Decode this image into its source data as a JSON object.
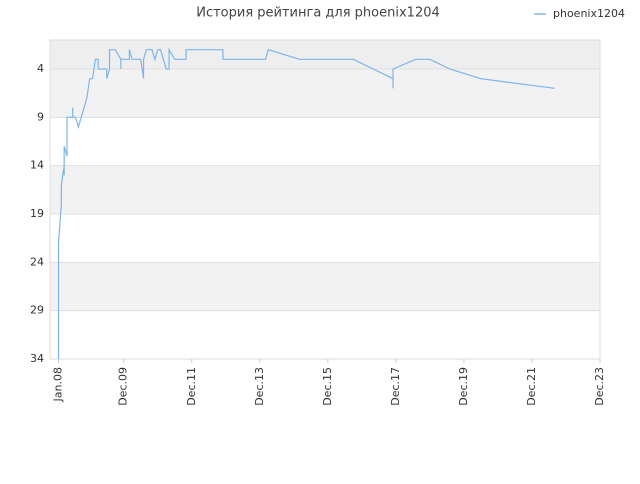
{
  "chart_data": {
    "type": "line",
    "title": "История рейтинга для phoenix1204",
    "x": [
      "2008-01",
      "2008-01",
      "2008-01",
      "2008-02",
      "2008-02",
      "2008-03",
      "2008-03",
      "2008-03",
      "2008-04",
      "2008-04",
      "2008-06",
      "2008-06",
      "2008-06",
      "2008-07",
      "2008-08",
      "2008-11",
      "2008-12",
      "2009-01",
      "2009-02",
      "2009-03",
      "2009-03",
      "2009-06",
      "2009-06",
      "2009-07",
      "2009-07",
      "2009-09",
      "2009-11",
      "2009-11",
      "2009-11",
      "2010-02",
      "2010-02",
      "2010-03",
      "2010-06",
      "2010-07",
      "2010-07",
      "2010-08",
      "2010-10",
      "2010-11",
      "2010-12",
      "2011-01",
      "2011-03",
      "2011-04",
      "2011-04",
      "2011-06",
      "2011-10",
      "2011-10",
      "2012-11",
      "2012-11",
      "2014-02",
      "2014-03",
      "2015-02",
      "2016-09",
      "2017-11",
      "2017-11",
      "2017-11",
      "2018-07",
      "2018-12",
      "2019-07",
      "2020-06",
      "2022-08"
    ],
    "series": [
      {
        "name": "phoenix1204",
        "color": "#7cb5ec",
        "values": [
          34,
          26,
          22,
          18,
          16,
          14,
          15,
          12,
          13,
          9,
          9,
          8,
          9,
          9,
          10,
          7,
          5,
          5,
          3,
          3,
          4,
          4,
          5,
          4,
          2,
          2,
          3,
          4,
          3,
          3,
          2,
          3,
          3,
          5,
          3,
          2,
          2,
          3,
          2,
          2,
          4,
          4,
          2,
          3,
          3,
          2,
          2,
          3,
          3,
          2,
          3,
          3,
          5,
          6,
          4,
          3,
          3,
          4,
          5,
          6
        ]
      }
    ],
    "ylim": [
      34,
      1
    ],
    "yticks": [
      4,
      9,
      14,
      19,
      24,
      29,
      34
    ],
    "xlim": [
      "2007-10",
      "2023-12"
    ],
    "xticks": [
      {
        "value": "2008-01",
        "label": "Jan.08"
      },
      {
        "value": "2009-12",
        "label": "Dec.09"
      },
      {
        "value": "2011-12",
        "label": "Dec.11"
      },
      {
        "value": "2013-12",
        "label": "Dec.13"
      },
      {
        "value": "2015-12",
        "label": "Dec.15"
      },
      {
        "value": "2017-12",
        "label": "Dec.17"
      },
      {
        "value": "2019-12",
        "label": "Dec.19"
      },
      {
        "value": "2021-12",
        "label": "Dec.21"
      },
      {
        "value": "2023-12",
        "label": "Dec.23"
      }
    ],
    "grid": true,
    "legend": "top-right"
  }
}
